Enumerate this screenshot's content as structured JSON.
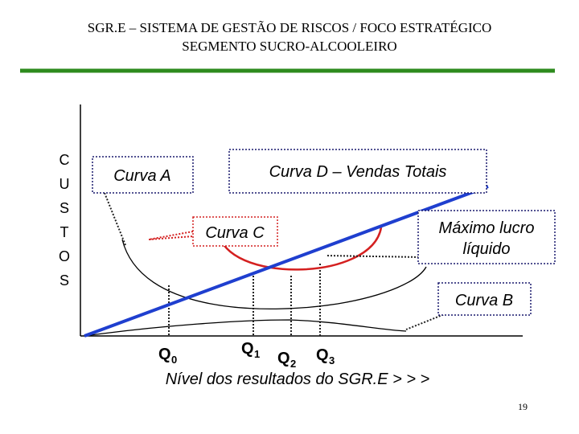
{
  "header": {
    "title_line1": "SGR.E – SISTEMA DE GESTÃO DE RISCOS / FOCO ESTRATÉGICO",
    "title_line2": "SEGMENTO SUCRO-ALCOOLEIRO"
  },
  "y_axis_label": [
    "C",
    "U",
    "S",
    "T",
    "O",
    "S"
  ],
  "labels": {
    "curve_a": "Curva A",
    "curve_d": "Curva D – Vendas Totais",
    "curve_c": "Curva C",
    "max_profit_line1": "Máximo lucro",
    "max_profit_line2": "líquido",
    "curve_b": "Curva B"
  },
  "markers": [
    {
      "main": "Q",
      "sub": "0"
    },
    {
      "main": "Q",
      "sub": "1"
    },
    {
      "main": "Q",
      "sub": "2"
    },
    {
      "main": "Q",
      "sub": "3"
    }
  ],
  "x_axis_label": "Nível dos resultados do SGR.E > > >",
  "page_number": "19"
}
